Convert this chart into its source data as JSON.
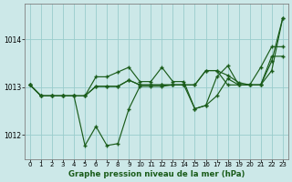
{
  "bg_color": "#cce8e8",
  "grid_color": "#99cccc",
  "line_color": "#1a5c1a",
  "xlabel": "Graphe pression niveau de la mer (hPa)",
  "ylim": [
    1011.5,
    1014.75
  ],
  "xlim": [
    -0.5,
    23.5
  ],
  "yticks": [
    1012,
    1013,
    1014
  ],
  "xticks": [
    0,
    1,
    2,
    3,
    4,
    5,
    6,
    7,
    8,
    9,
    10,
    11,
    12,
    13,
    14,
    15,
    16,
    17,
    18,
    19,
    20,
    21,
    22,
    23
  ],
  "series": [
    [
      1013.05,
      1012.82,
      1012.82,
      1012.82,
      1012.82,
      1011.78,
      1012.18,
      1011.78,
      1011.82,
      1012.55,
      1013.02,
      1013.02,
      1013.02,
      1013.05,
      1013.05,
      1012.55,
      1012.62,
      1012.82,
      1013.18,
      1013.05,
      1013.05,
      1013.05,
      1013.65,
      1013.65
    ],
    [
      1013.05,
      1012.82,
      1012.82,
      1012.82,
      1012.82,
      1012.82,
      1013.02,
      1013.02,
      1013.02,
      1013.15,
      1013.05,
      1013.05,
      1013.05,
      1013.05,
      1013.05,
      1013.05,
      1013.35,
      1013.35,
      1013.05,
      1013.05,
      1013.05,
      1013.05,
      1013.35,
      1014.45
    ],
    [
      1013.05,
      1012.82,
      1012.82,
      1012.82,
      1012.82,
      1012.82,
      1013.02,
      1013.02,
      1013.02,
      1013.15,
      1013.05,
      1013.05,
      1013.05,
      1013.05,
      1013.05,
      1013.05,
      1013.35,
      1013.35,
      1013.25,
      1013.1,
      1013.05,
      1013.05,
      1013.55,
      1014.45
    ],
    [
      1013.05,
      1012.82,
      1012.82,
      1012.82,
      1012.82,
      1012.82,
      1013.22,
      1013.22,
      1013.32,
      1013.42,
      1013.12,
      1013.12,
      1013.42,
      1013.12,
      1013.12,
      1012.55,
      1012.62,
      1013.22,
      1013.45,
      1013.05,
      1013.05,
      1013.42,
      1013.85,
      1013.85
    ]
  ]
}
